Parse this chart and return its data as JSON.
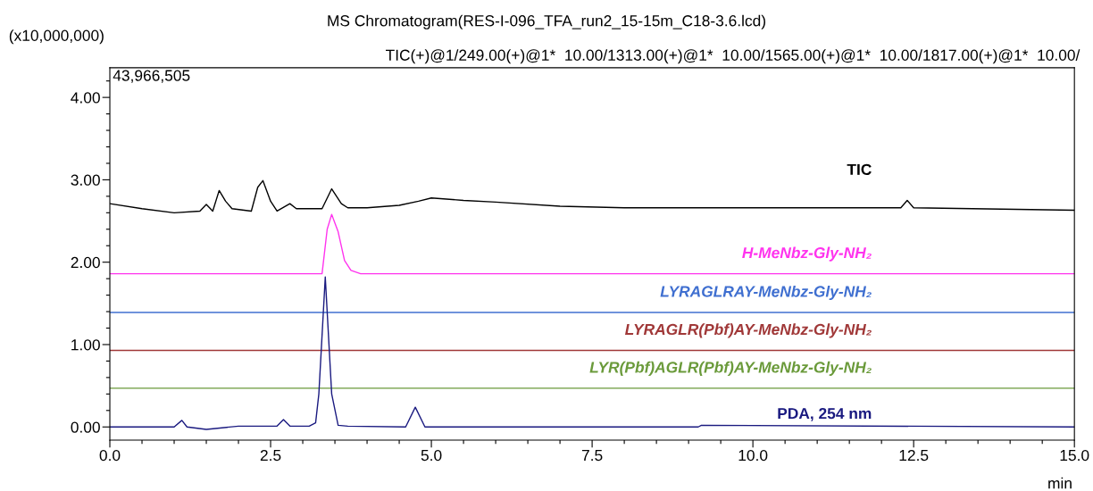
{
  "chart_data": {
    "type": "line",
    "title": "MS Chromatogram(RES-I-096_TFA_run2_15-15m_C18-3.6.lcd)",
    "subtitle": "TIC(+)@1/249.00(+)@1*  10.00/1313.00(+)@1*  10.00/1565.00(+)@1*  10.00/1817.00(+)@1*  10.00/",
    "ylabel": "(x10,000,000)",
    "xlabel": "min",
    "annotations": [
      "43,966,505"
    ],
    "xlim": [
      0,
      15
    ],
    "ylim": [
      -0.16,
      4.36
    ],
    "xticks": [
      {
        "value": 0,
        "label": "0.0"
      },
      {
        "value": 0.5,
        "label": null
      },
      {
        "value": 1,
        "label": null
      },
      {
        "value": 1.5,
        "label": null
      },
      {
        "value": 2,
        "label": null
      },
      {
        "value": 2.5,
        "label": "2.5"
      },
      {
        "value": 3,
        "label": null
      },
      {
        "value": 3.5,
        "label": null
      },
      {
        "value": 4,
        "label": null
      },
      {
        "value": 4.5,
        "label": null
      },
      {
        "value": 5,
        "label": "5.0"
      },
      {
        "value": 5.5,
        "label": null
      },
      {
        "value": 6,
        "label": null
      },
      {
        "value": 6.5,
        "label": null
      },
      {
        "value": 7,
        "label": null
      },
      {
        "value": 7.5,
        "label": "7.5"
      },
      {
        "value": 8,
        "label": null
      },
      {
        "value": 8.5,
        "label": null
      },
      {
        "value": 9,
        "label": null
      },
      {
        "value": 9.5,
        "label": null
      },
      {
        "value": 10,
        "label": "10.0"
      },
      {
        "value": 10.5,
        "label": null
      },
      {
        "value": 11,
        "label": null
      },
      {
        "value": 11.5,
        "label": null
      },
      {
        "value": 12,
        "label": null
      },
      {
        "value": 12.5,
        "label": "12.5"
      },
      {
        "value": 13,
        "label": null
      },
      {
        "value": 13.5,
        "label": null
      },
      {
        "value": 14,
        "label": null
      },
      {
        "value": 14.5,
        "label": null
      },
      {
        "value": 15,
        "label": "15.0"
      }
    ],
    "yticks": [
      {
        "value": 0,
        "label": "0.00"
      },
      {
        "value": 0.2,
        "label": null
      },
      {
        "value": 0.4,
        "label": null
      },
      {
        "value": 0.6,
        "label": null
      },
      {
        "value": 0.8,
        "label": null
      },
      {
        "value": 1,
        "label": "1.00"
      },
      {
        "value": 1.2,
        "label": null
      },
      {
        "value": 1.4,
        "label": null
      },
      {
        "value": 1.6,
        "label": null
      },
      {
        "value": 1.8,
        "label": null
      },
      {
        "value": 2,
        "label": "2.00"
      },
      {
        "value": 2.2,
        "label": null
      },
      {
        "value": 2.4,
        "label": null
      },
      {
        "value": 2.6,
        "label": null
      },
      {
        "value": 2.8,
        "label": null
      },
      {
        "value": 3,
        "label": "3.00"
      },
      {
        "value": 3.2,
        "label": null
      },
      {
        "value": 3.4,
        "label": null
      },
      {
        "value": 3.6,
        "label": null
      },
      {
        "value": 3.8,
        "label": null
      },
      {
        "value": 4,
        "label": "4.00"
      },
      {
        "value": 4.2,
        "label": null
      }
    ],
    "grid": false,
    "legend": false,
    "marker": "none",
    "line_style": "solid",
    "series": [
      {
        "name": "TIC",
        "color": "#000000",
        "x": [
          0,
          0.5,
          1.0,
          1.4,
          1.5,
          1.6,
          1.7,
          1.8,
          1.9,
          2.2,
          2.3,
          2.38,
          2.5,
          2.6,
          2.8,
          2.9,
          3.3,
          3.45,
          3.6,
          3.7,
          4.0,
          4.5,
          4.8,
          5.0,
          5.5,
          6.0,
          7.0,
          8.0,
          10.0,
          12.3,
          12.4,
          12.5,
          15.0
        ],
        "values": [
          2.71,
          2.65,
          2.6,
          2.62,
          2.7,
          2.62,
          2.87,
          2.74,
          2.65,
          2.62,
          2.91,
          2.99,
          2.74,
          2.62,
          2.71,
          2.65,
          2.65,
          2.89,
          2.71,
          2.66,
          2.66,
          2.69,
          2.74,
          2.78,
          2.75,
          2.73,
          2.68,
          2.66,
          2.66,
          2.66,
          2.75,
          2.66,
          2.63
        ]
      },
      {
        "name": "H-MeNbz-Gly-NH₂",
        "color": "#ff33ee",
        "x": [
          0,
          3.3,
          3.38,
          3.45,
          3.55,
          3.65,
          3.75,
          3.9,
          15
        ],
        "values": [
          1.86,
          1.86,
          2.4,
          2.58,
          2.37,
          2.02,
          1.9,
          1.86,
          1.86
        ]
      },
      {
        "name": "LYRAGLRAY-MeNbz-Gly-NH₂",
        "color": "#3f6fd0",
        "x": [
          0,
          15
        ],
        "values": [
          1.39,
          1.39
        ]
      },
      {
        "name": "LYRAGLR(Pbf)AY-MeNbz-Gly-NH₂",
        "color": "#a03838",
        "x": [
          0,
          15
        ],
        "values": [
          0.93,
          0.93
        ]
      },
      {
        "name": "LYR(Pbf)AGLR(Pbf)AY-MeNbz-Gly-NH₂",
        "color": "#6a9a3a",
        "x": [
          0,
          15
        ],
        "values": [
          0.47,
          0.47
        ]
      },
      {
        "name": "PDA, 254 nm",
        "color": "#1a1a80",
        "x": [
          0,
          1.0,
          1.12,
          1.2,
          1.5,
          2.0,
          2.6,
          2.7,
          2.8,
          3.1,
          3.2,
          3.25,
          3.35,
          3.45,
          3.55,
          3.7,
          4.6,
          4.75,
          4.9,
          9.15,
          9.2,
          15
        ],
        "values": [
          0,
          0,
          0.08,
          0,
          -0.03,
          0.01,
          0.01,
          0.09,
          0.01,
          0.01,
          0.05,
          0.4,
          1.82,
          0.4,
          0.02,
          0.01,
          0,
          0.24,
          0,
          0,
          0.02,
          0
        ]
      }
    ]
  }
}
